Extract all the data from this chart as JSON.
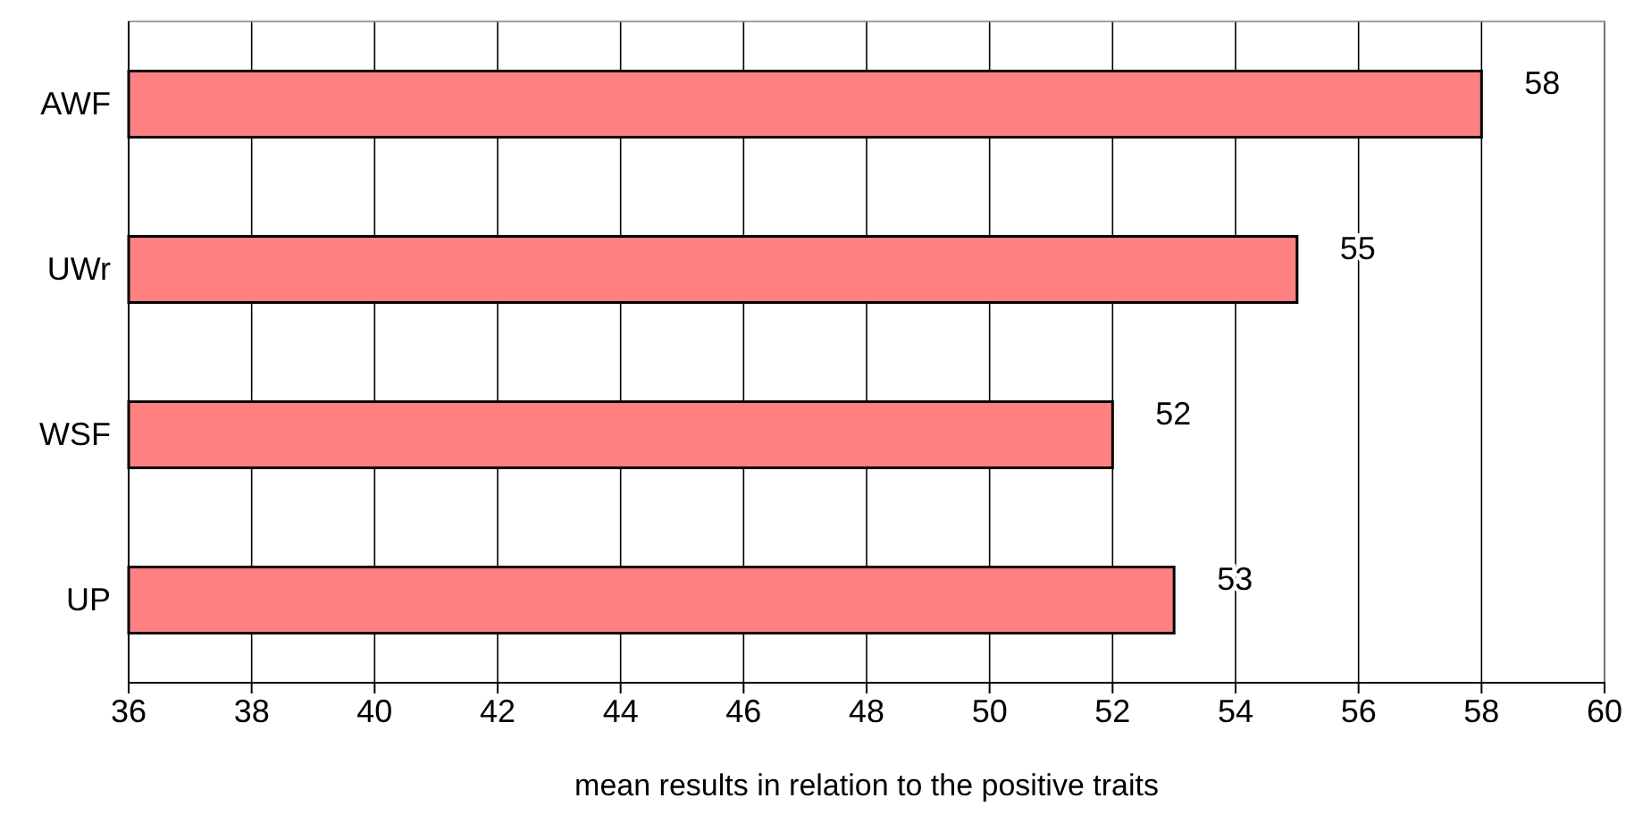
{
  "chart_data": {
    "type": "bar",
    "orientation": "horizontal",
    "xlabel": "mean results in relation to the positive traits",
    "categories": [
      "AWF",
      "UWr",
      "WSF",
      "UP"
    ],
    "values": [
      58,
      55,
      52,
      53
    ],
    "color": "#ff8080",
    "xlim": [
      36,
      60
    ],
    "xticks": [
      36,
      38,
      40,
      42,
      44,
      46,
      48,
      50,
      52,
      54,
      56,
      58,
      60
    ],
    "grid": "x",
    "data_labels": true
  }
}
